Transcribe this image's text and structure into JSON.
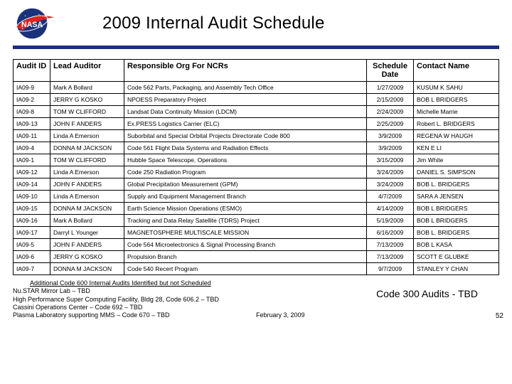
{
  "title": "2009 Internal Audit Schedule",
  "accent_color": "#1b317a",
  "columns": [
    "Audit ID",
    "Lead Auditor",
    "Responsible Org For NCRs",
    "Schedule Date",
    "Contact Name"
  ],
  "rows": [
    [
      "IA09-9",
      "Mark A Bollard",
      "Code 562 Parts, Packaging, and Assembly Tech Office",
      "1/27/2009",
      "KUSUM K SAHU"
    ],
    [
      "IA09-2",
      "JERRY G KOSKO",
      "NPOESS Preparatory Project",
      "2/15/2009",
      "BOB L BRIDGERS"
    ],
    [
      "IA09-8",
      "TOM W CLIFFORD",
      "Landsat Data Continuity Mission (LDCM)",
      "2/24/2009",
      "Michelle Marrie"
    ],
    [
      "IA09-13",
      "JOHN F ANDERS",
      "Ex.PRESS Logistics Carrier (ELC)",
      "2/25/2009",
      "Robert L. BRIDGERS"
    ],
    [
      "IA09-11",
      "Linda A Emerson",
      "Suborbital and Special Orbital Projects Directorate Code 800",
      "3/9/2009",
      "REGENA W HAUGH"
    ],
    [
      "IA09-4",
      "DONNA M JACKSON",
      "Code 561 Flight Data Systems and Radiation Effects",
      "3/9/2009",
      "KEN E LI"
    ],
    [
      "IA09-1",
      "TOM W CLIFFORD",
      "Hubble Space Telescope, Operations",
      "3/15/2009",
      "Jim White"
    ],
    [
      "IA09-12",
      "Linda A Emerson",
      "Code 250 Radiation Program",
      "3/24/2009",
      "DANIEL S. SIMPSON"
    ],
    [
      "IA09-14",
      "JOHN F ANDERS",
      "Global Precipitation Measurement (GPM)",
      "3/24/2009",
      "BOB L. BRIDGERS"
    ],
    [
      "IA09-10",
      "Linda A Emerson",
      "Supply and Equipment Management Branch",
      "4/7/2009",
      "SARA A JENSEN"
    ],
    [
      "IA09-15",
      "DONNA M JACKSON",
      "Earth Science Mission Operations (ESMO)",
      "4/14/2009",
      "BOB L BRIDGERS"
    ],
    [
      "IA09-16",
      "Mark A Bollard",
      "Tracking and Data Relay Satellite (TDRS) Project",
      "5/19/2009",
      "BOB L BRIDGERS"
    ],
    [
      "IA09-17",
      "Darryl L Younger",
      "MAGNETOSPHERE MULTISCALE MISSION",
      "6/16/2009",
      "BOB L. BRIDGERS"
    ],
    [
      "IA09-5",
      "JOHN F ANDERS",
      "Code 564 Microelectronics & Signal Processing Branch",
      "7/13/2009",
      "BOB L KASA"
    ],
    [
      "IA09-6",
      "JERRY G KOSKO",
      "Propulsion Branch",
      "7/13/2009",
      "SCOTT E GLUBKE"
    ],
    [
      "IA09-7",
      "DONNA M JACKSON",
      "Code 540 Recert Program",
      "9/7/2009",
      "STANLEY Y CHAN"
    ]
  ],
  "additional_title": "Additional Code 600 Internal Audits Identified but not Scheduled",
  "additional_items": [
    "Nu.STAR Mirror Lab – TBD",
    "High Performance Super Computing Facility, Bldg 28, Code 606.2 – TBD",
    "Cassini Operations Center – Code 692 – TBD",
    "Plasma Laboratory supporting MMS – Code 670 – TBD"
  ],
  "code300": "Code 300 Audits - TBD",
  "footer_date": "February 3, 2009",
  "page_number": "52"
}
